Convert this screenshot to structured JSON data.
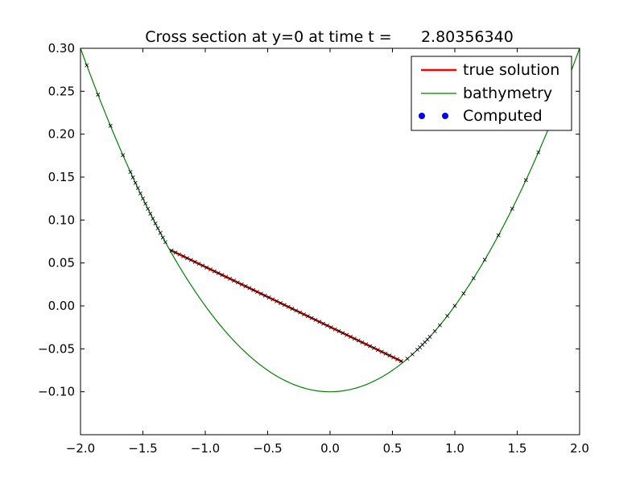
{
  "chart_data": {
    "type": "line",
    "title": "Cross section at y=0 at time t =      2.80356340",
    "xlabel": "",
    "ylabel": "",
    "xlim": [
      -2.0,
      2.0
    ],
    "ylim": [
      -0.15,
      0.3
    ],
    "x_ticks": [
      -2.0,
      -1.5,
      -1.0,
      -0.5,
      0.0,
      0.5,
      1.0,
      1.5,
      2.0
    ],
    "x_tick_labels": [
      "−2.0",
      "−1.5",
      "−1.0",
      "−0.5",
      "0.0",
      "0.5",
      "1.0",
      "1.5",
      "2.0"
    ],
    "y_ticks": [
      -0.1,
      -0.05,
      0.0,
      0.05,
      0.1,
      0.15,
      0.2,
      0.25,
      0.3
    ],
    "y_tick_labels": [
      "−0.10",
      "−0.05",
      "0.00",
      "0.05",
      "0.10",
      "0.15",
      "0.20",
      "0.25",
      "0.30"
    ],
    "grid": false,
    "legend_position": "top-right",
    "series": [
      {
        "name": "true solution",
        "style": "line",
        "color": "#ff0000",
        "x": [
          -1.28,
          0.58
        ],
        "y": [
          0.065,
          -0.065
        ]
      },
      {
        "name": "bathymetry",
        "style": "line",
        "color": "#008000",
        "function": "y = 0.1*x^2 - 0.1",
        "x": [
          -2.0,
          -1.75,
          -1.5,
          -1.25,
          -1.0,
          -0.75,
          -0.5,
          -0.25,
          0.0,
          0.25,
          0.5,
          0.75,
          1.0,
          1.25,
          1.5,
          1.75,
          2.0
        ],
        "y": [
          0.3,
          0.20625,
          0.125,
          0.05625,
          0.0,
          -0.04375,
          -0.075,
          -0.09375,
          -0.1,
          -0.09375,
          -0.075,
          -0.04375,
          0.0,
          0.05625,
          0.125,
          0.20625,
          0.3
        ]
      },
      {
        "name": "Computed",
        "style": "markers",
        "color": "#0000ff"
      }
    ],
    "computed_markers": {
      "color": "#000000",
      "symbol": "x",
      "left_bank_x": [
        -1.95,
        -1.86,
        -1.76,
        -1.66,
        -1.6,
        -1.58,
        -1.56,
        -1.54,
        -1.52,
        -1.5,
        -1.48,
        -1.46,
        -1.44,
        -1.42,
        -1.4,
        -1.38,
        -1.36,
        -1.34,
        -1.32
      ],
      "right_bank_x": [
        0.62,
        0.66,
        0.7,
        0.72,
        0.74,
        0.76,
        0.78,
        0.8,
        0.84,
        0.88,
        0.94,
        1.0,
        1.07,
        1.15,
        1.24,
        1.35,
        1.46,
        1.57,
        1.67,
        1.77
      ],
      "surface_x_start": -1.27,
      "surface_x_end": 0.57,
      "surface_count": 60
    }
  }
}
